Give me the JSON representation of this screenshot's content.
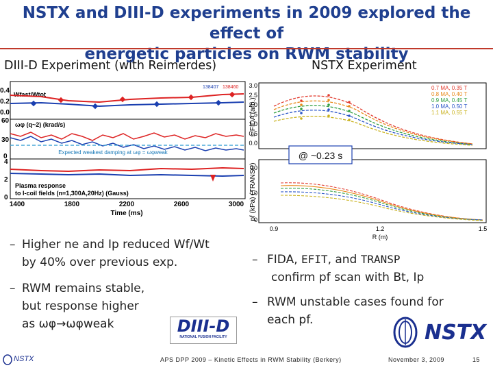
{
  "slide": {
    "title_line1": "NSTX and DIII-D experiments in 2009 explored the effect of",
    "title_line2": "energetic particles on RWM stability",
    "left_header": "DIII-D Experiment (with Reimerdes)",
    "right_header": "NSTX Experiment",
    "accent": "#1f3f8f",
    "rule_color": "#c0392b"
  },
  "left_plot": {
    "shots": [
      "138407",
      "138460"
    ],
    "panel1": {
      "label": "Wfast/Wtot",
      "yticks": [
        "0.4",
        "0.2",
        "0.0"
      ]
    },
    "panel2": {
      "label": "ωφ (q~2) (krad/s)",
      "yticks": [
        "60",
        "30",
        "0"
      ],
      "annotation": "Expected weakest damping at ωφ = ωφweak"
    },
    "panel3": {
      "label_line1": "Plasma response",
      "label_line2": "to I-coil fields (n=1,300A,20Hz) (Gauss)",
      "yticks": [
        "4",
        "2",
        "0"
      ]
    },
    "xticks": [
      "1400",
      "1800",
      "2200",
      "2600",
      "3000"
    ],
    "xlabel": "Time (ms)"
  },
  "right_plot": {
    "top_ylabel": "s-FIDA (arb.)",
    "top_yticks": [
      "3.0",
      "2.5",
      "2.0",
      "1.5",
      "1.0",
      "0.5",
      "0.0"
    ],
    "legend": [
      {
        "text": "0.7 MA, 0.35 T",
        "color": "#e23b2e"
      },
      {
        "text": "0.8 MA, 0.40 T",
        "color": "#e88a1a"
      },
      {
        "text": "0.9 MA, 0.45 T",
        "color": "#2f9e3f"
      },
      {
        "text": "1.0 MA, 0.50 T",
        "color": "#2b56c8"
      },
      {
        "text": "1.1 MA, 0.55 T",
        "color": "#c9b21e"
      }
    ],
    "time_label": "@ ~0.23 s",
    "bottom_ylabel": "pf (kPa) (TRANSP)",
    "bottom_yticks": [
      "20",
      "10",
      "0"
    ],
    "xticks": [
      "0.9",
      "1.2",
      "1.5"
    ],
    "xlabel": "R (m)"
  },
  "bullets_left": {
    "b1_line1": "Higher ne and Ip reduced Wf/Wt",
    "b1_line2": "by 40% over previous exp.",
    "b2_line1": "RWM remains stable,",
    "b2_line2": "but response higher",
    "b2_line3": "as ωφ→ωφweak"
  },
  "bullets_right": {
    "b1_pre": "FIDA, ",
    "b1_efit": "EFIT",
    "b1_mid": ", and ",
    "b1_transp": "TRANSP",
    "b1_line2": "confirm pf scan with Bt, Ip",
    "b2_line1": "RWM unstable cases found for",
    "b2_line2": "each pf."
  },
  "logos": {
    "diiid_text": "DIII-D",
    "diiid_sub": "NATIONAL FUSION FACILITY",
    "nstx_text": "NSTX"
  },
  "footer": {
    "left": "NSTX",
    "center": "APS DPP 2009 – Kinetic Effects in RWM Stability (Berkery)",
    "date": "November 3, 2009",
    "page": "15"
  }
}
